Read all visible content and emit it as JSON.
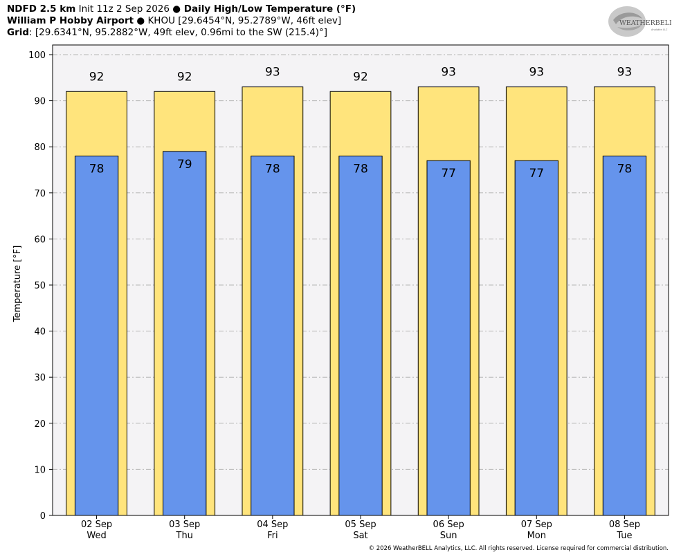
{
  "header": {
    "line1_bold_a": "NDFD 2.5 km",
    "line1_rest_a": " Init 11z 2 Sep 2026 ",
    "line1_bullet": "●",
    "line1_bold_b": " Daily High/Low Temperature (°F)",
    "line2_bold": "William P Hobby Airport",
    "line2_bullet": " ● ",
    "line2_rest": "KHOU [29.6454°N, 95.2789°W, 46ft elev]",
    "line3_bold": "Grid",
    "line3_rest": ": [29.6341°N, 95.2882°W, 49ft elev, 0.96mi to the SW (215.4)°]"
  },
  "logo": {
    "text_main": "WEATHERBELL",
    "text_sub": "Analytics LLC"
  },
  "footer": {
    "copyright": "© 2026 WeatherBELL Analytics, LLC. All rights reserved. License required for commercial distribution."
  },
  "colors": {
    "high": "#ffe47c",
    "low": "#6594ec",
    "plot_bg": "#f4f3f5",
    "grid": "#b4b4b4"
  },
  "chart_data": {
    "type": "bar",
    "ylabel": "Temperature [°F]",
    "ylim": [
      0,
      100
    ],
    "yticks": [
      0,
      10,
      20,
      30,
      40,
      50,
      60,
      70,
      80,
      90,
      100
    ],
    "grid": true,
    "categories": [
      "02 Sep\nWed",
      "03 Sep\nThu",
      "04 Sep\nFri",
      "05 Sep\nSat",
      "06 Sep\nSun",
      "07 Sep\nMon",
      "08 Sep\nTue"
    ],
    "category_dates": [
      "02 Sep",
      "03 Sep",
      "04 Sep",
      "05 Sep",
      "06 Sep",
      "07 Sep",
      "08 Sep"
    ],
    "category_days": [
      "Wed",
      "Thu",
      "Fri",
      "Sat",
      "Sun",
      "Mon",
      "Tue"
    ],
    "series": [
      {
        "values": [
          92,
          92,
          93,
          92,
          93,
          93,
          93
        ]
      },
      {
        "values": [
          78,
          79,
          78,
          78,
          77,
          77,
          78
        ]
      }
    ]
  }
}
